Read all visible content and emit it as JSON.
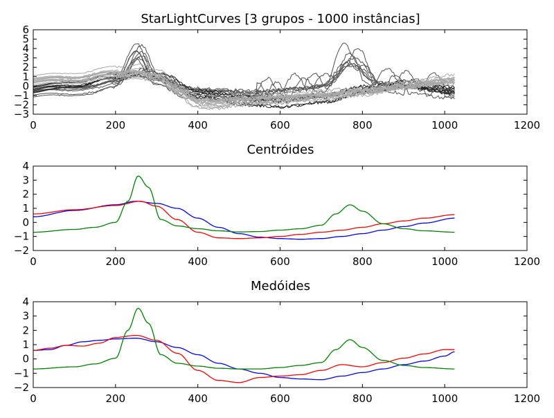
{
  "chart_data": [
    {
      "type": "line",
      "title": "StarLightCurves [3 grupos - 1000 instâncias]",
      "xlim": [
        0,
        1200
      ],
      "ylim": [
        -3,
        6
      ],
      "xticks": [
        0,
        200,
        400,
        600,
        800,
        1000,
        1200
      ],
      "yticks": [
        -3,
        -2,
        -1,
        0,
        1,
        2,
        3,
        4,
        5,
        6
      ],
      "grid": false,
      "description_series": [
        {
          "color": "#555555",
          "count": 8,
          "profile": "peaks_both"
        },
        {
          "color": "#222222",
          "count": 6,
          "profile": "flat_noisy"
        },
        {
          "color": "#aaaaaa",
          "count": 14,
          "profile": "blue_like"
        }
      ]
    },
    {
      "type": "line",
      "title": "Centróides",
      "xlim": [
        0,
        1200
      ],
      "ylim": [
        -2,
        4
      ],
      "xticks": [
        0,
        200,
        400,
        600,
        800,
        1000,
        1200
      ],
      "yticks": [
        -2,
        -1,
        0,
        1,
        2,
        3,
        4
      ],
      "grid": false,
      "series": [
        {
          "color": "#0000ff",
          "x": [
            0,
            100,
            200,
            250,
            300,
            350,
            400,
            450,
            500,
            550,
            600,
            650,
            700,
            750,
            800,
            850,
            900,
            950,
            1024
          ],
          "values": [
            0.4,
            0.85,
            1.25,
            1.5,
            1.35,
            1.0,
            0.3,
            -0.35,
            -0.8,
            -1.05,
            -1.15,
            -1.2,
            -1.15,
            -1.0,
            -0.8,
            -0.55,
            -0.3,
            -0.05,
            0.3
          ]
        },
        {
          "color": "#ff0000",
          "x": [
            0,
            100,
            200,
            260,
            300,
            350,
            400,
            450,
            500,
            550,
            600,
            650,
            700,
            750,
            800,
            850,
            900,
            950,
            1024
          ],
          "values": [
            0.6,
            0.9,
            1.2,
            1.5,
            1.15,
            0.2,
            -0.7,
            -1.1,
            -1.15,
            -1.1,
            -1.0,
            -0.85,
            -0.7,
            -0.55,
            -0.35,
            -0.1,
            0.1,
            0.3,
            0.55
          ]
        },
        {
          "color": "#008000",
          "x": [
            0,
            100,
            150,
            200,
            230,
            255,
            280,
            310,
            350,
            400,
            450,
            500,
            550,
            600,
            650,
            700,
            735,
            770,
            800,
            850,
            900,
            950,
            1024
          ],
          "values": [
            -0.7,
            -0.5,
            -0.35,
            0.0,
            1.5,
            3.3,
            2.5,
            0.2,
            -0.25,
            -0.45,
            -0.6,
            -0.68,
            -0.65,
            -0.55,
            -0.45,
            -0.2,
            0.6,
            1.25,
            0.8,
            -0.1,
            -0.45,
            -0.6,
            -0.7
          ]
        }
      ]
    },
    {
      "type": "line",
      "title": "Medóides",
      "xlim": [
        0,
        1200
      ],
      "ylim": [
        -2,
        4
      ],
      "xticks": [
        0,
        200,
        400,
        600,
        800,
        1000,
        1200
      ],
      "yticks": [
        -2,
        -1,
        0,
        1,
        2,
        3,
        4
      ],
      "grid": false,
      "series": [
        {
          "color": "#0000ff",
          "x": [
            0,
            40,
            80,
            120,
            160,
            200,
            250,
            300,
            350,
            400,
            450,
            500,
            550,
            600,
            650,
            700,
            750,
            800,
            850,
            900,
            950,
            1000,
            1024
          ],
          "values": [
            0.6,
            0.65,
            0.95,
            1.2,
            1.3,
            1.4,
            1.45,
            1.2,
            0.8,
            0.3,
            -0.3,
            -0.7,
            -1.0,
            -1.3,
            -1.4,
            -1.45,
            -1.2,
            -0.95,
            -0.7,
            -0.4,
            -0.15,
            0.2,
            0.5
          ]
        },
        {
          "color": "#ff0000",
          "x": [
            0,
            40,
            80,
            120,
            160,
            200,
            250,
            300,
            350,
            400,
            450,
            500,
            550,
            600,
            650,
            700,
            750,
            800,
            850,
            900,
            950,
            1000,
            1024
          ],
          "values": [
            0.6,
            0.75,
            0.95,
            0.9,
            1.1,
            1.5,
            1.65,
            1.3,
            0.4,
            -0.8,
            -1.5,
            -1.65,
            -1.3,
            -1.2,
            -1.1,
            -0.8,
            -0.4,
            -0.55,
            -0.25,
            0.05,
            0.35,
            0.65,
            0.65
          ]
        },
        {
          "color": "#008000",
          "x": [
            0,
            100,
            150,
            200,
            230,
            255,
            280,
            310,
            350,
            400,
            450,
            500,
            550,
            600,
            650,
            700,
            735,
            770,
            800,
            850,
            900,
            950,
            1024
          ],
          "values": [
            -0.7,
            -0.55,
            -0.35,
            0.05,
            2.0,
            3.55,
            2.5,
            0.3,
            -0.3,
            -0.5,
            -0.65,
            -0.7,
            -0.7,
            -0.6,
            -0.45,
            -0.25,
            0.65,
            1.35,
            0.8,
            -0.1,
            -0.45,
            -0.6,
            -0.7
          ]
        }
      ]
    }
  ]
}
